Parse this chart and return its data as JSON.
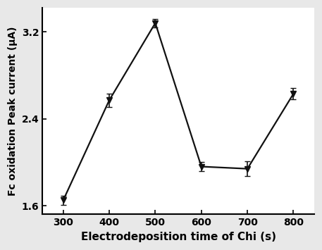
{
  "x": [
    300,
    400,
    500,
    600,
    700,
    800
  ],
  "y": [
    1.65,
    2.57,
    3.28,
    1.96,
    1.94,
    2.63
  ],
  "yerr": [
    0.04,
    0.06,
    0.04,
    0.04,
    0.07,
    0.05
  ],
  "xlabel": "Electrodeposition time of Chi (s)",
  "ylabel": "Fc oxidation Peak current (μA)",
  "xlim": [
    255,
    845
  ],
  "ylim": [
    1.52,
    3.42
  ],
  "yticks": [
    1.6,
    2.4,
    3.2
  ],
  "xticks": [
    300,
    400,
    500,
    600,
    700,
    800
  ],
  "line_color": "#111111",
  "marker": "v",
  "marker_color": "#111111",
  "marker_size": 6,
  "linewidth": 1.6,
  "capsize": 3,
  "elinewidth": 1.2,
  "xlabel_fontsize": 11,
  "ylabel_fontsize": 10,
  "tick_fontsize": 10,
  "xlabel_fontweight": "bold",
  "ylabel_fontweight": "bold",
  "tick_fontweight": "bold",
  "figure_facecolor": "#e8e8e8",
  "axes_facecolor": "#ffffff"
}
